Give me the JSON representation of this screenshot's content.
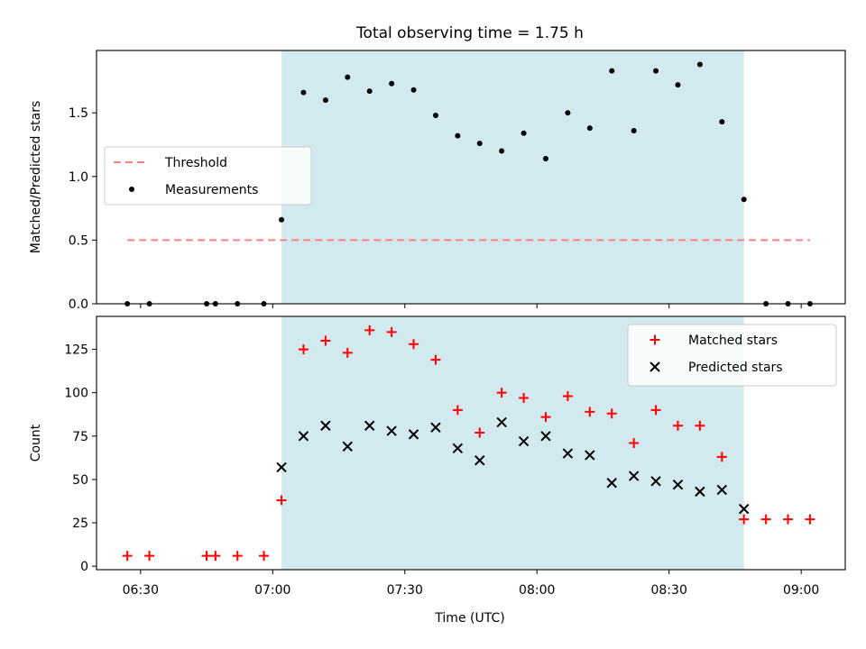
{
  "title": "Total observing time = 1.75 h",
  "xlabel": "Time (UTC)",
  "chart_data": [
    {
      "type": "scatter",
      "panel": "top",
      "ylabel": "Matched/Predicted stars",
      "xlim": [
        "06:20",
        "09:10"
      ],
      "ylim": [
        0,
        1.99
      ],
      "yticks": [
        0.0,
        0.5,
        1.0,
        1.5
      ],
      "ytick_labels": [
        "0.0",
        "0.5",
        "1.0",
        "1.5"
      ],
      "legend_position": "center-left",
      "shaded_interval": {
        "start": "07:02",
        "end": "08:47",
        "color": "#d3e9f0"
      },
      "series": [
        {
          "name": "Threshold",
          "style": "dashed-line",
          "color": "#ff7f7f",
          "x": [
            "06:27",
            "09:02"
          ],
          "y": [
            0.5,
            0.5
          ]
        },
        {
          "name": "Measurements",
          "style": "dot",
          "color": "#000000",
          "x": [
            "06:27",
            "06:32",
            "06:45",
            "06:47",
            "06:52",
            "06:58",
            "07:02",
            "07:07",
            "07:12",
            "07:17",
            "07:22",
            "07:27",
            "07:32",
            "07:37",
            "07:42",
            "07:47",
            "07:52",
            "07:57",
            "08:02",
            "08:07",
            "08:12",
            "08:17",
            "08:22",
            "08:27",
            "08:32",
            "08:37",
            "08:42",
            "08:47",
            "08:52",
            "08:57",
            "09:02"
          ],
          "y": [
            0,
            0,
            0,
            0,
            0,
            0,
            0.66,
            1.66,
            1.6,
            1.78,
            1.67,
            1.73,
            1.68,
            1.48,
            1.32,
            1.26,
            1.2,
            1.34,
            1.14,
            1.5,
            1.38,
            1.83,
            1.36,
            1.83,
            1.72,
            1.88,
            1.43,
            0.82,
            0,
            0,
            0
          ]
        }
      ]
    },
    {
      "type": "scatter",
      "panel": "bottom",
      "ylabel": "Count",
      "xlim": [
        "06:20",
        "09:10"
      ],
      "ylim": [
        -2,
        144
      ],
      "yticks": [
        0,
        25,
        50,
        75,
        100,
        125
      ],
      "ytick_labels": [
        "0",
        "25",
        "50",
        "75",
        "100",
        "125"
      ],
      "legend_position": "top-right",
      "shaded_interval": {
        "start": "07:02",
        "end": "08:47",
        "color": "#d3e9f0"
      },
      "series": [
        {
          "name": "Matched stars",
          "marker": "plus",
          "color": "#ff0000",
          "x": [
            "06:27",
            "06:32",
            "06:45",
            "06:47",
            "06:52",
            "06:58",
            "07:02",
            "07:07",
            "07:12",
            "07:17",
            "07:22",
            "07:27",
            "07:32",
            "07:37",
            "07:42",
            "07:47",
            "07:52",
            "07:57",
            "08:02",
            "08:07",
            "08:12",
            "08:17",
            "08:22",
            "08:27",
            "08:32",
            "08:37",
            "08:42",
            "08:47",
            "08:52",
            "08:57",
            "09:02"
          ],
          "y": [
            6,
            6,
            6,
            6,
            6,
            6,
            38,
            125,
            130,
            123,
            136,
            135,
            128,
            119,
            90,
            77,
            100,
            97,
            86,
            98,
            89,
            88,
            71,
            90,
            81,
            81,
            63,
            27,
            27,
            27,
            27
          ]
        },
        {
          "name": "Predicted stars",
          "marker": "x",
          "color": "#000000",
          "x": [
            "07:02",
            "07:07",
            "07:12",
            "07:17",
            "07:22",
            "07:27",
            "07:32",
            "07:37",
            "07:42",
            "07:47",
            "07:52",
            "07:57",
            "08:02",
            "08:07",
            "08:12",
            "08:17",
            "08:22",
            "08:27",
            "08:32",
            "08:37",
            "08:42",
            "08:47"
          ],
          "y": [
            57,
            75,
            81,
            69,
            81,
            78,
            76,
            80,
            68,
            61,
            83,
            72,
            75,
            65,
            64,
            48,
            52,
            49,
            47,
            43,
            44,
            33
          ]
        }
      ]
    }
  ],
  "xticks": [
    "06:30",
    "07:00",
    "07:30",
    "08:00",
    "08:30",
    "09:00"
  ]
}
